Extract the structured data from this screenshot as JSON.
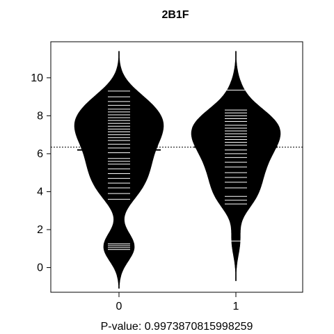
{
  "chart_data": {
    "type": "beanplot",
    "title": "2B1F",
    "xlabel": "P-value: 0.9973870815998259",
    "ylabel": "",
    "categories": [
      "0",
      "1"
    ],
    "x_ticks": [
      "0",
      "1"
    ],
    "y_ticks": [
      0,
      2,
      4,
      6,
      8,
      10
    ],
    "ylim": [
      -1.3,
      11.9
    ],
    "overall_mean": 6.35,
    "beans": [
      {
        "name": "0",
        "mean": 6.2,
        "range": [
          -1.1,
          11.4
        ],
        "observations": [
          0.95,
          1.05,
          1.15,
          1.25,
          3.6,
          3.9,
          4.2,
          4.45,
          4.7,
          4.95,
          5.2,
          5.45,
          5.6,
          5.75,
          6.05,
          6.3,
          6.5,
          6.7,
          6.85,
          7.0,
          7.15,
          7.3,
          7.45,
          7.6,
          7.75,
          7.9,
          8.05,
          8.2,
          8.35,
          8.55,
          8.75,
          9.0,
          9.3
        ]
      },
      {
        "name": "1",
        "mean": 6.35,
        "range": [
          -0.7,
          11.4
        ],
        "observations": [
          1.4,
          3.35,
          3.55,
          3.75,
          4.2,
          4.5,
          4.75,
          5.0,
          5.3,
          5.55,
          5.8,
          6.0,
          6.2,
          6.45,
          6.6,
          6.75,
          6.9,
          7.05,
          7.2,
          7.35,
          7.5,
          7.7,
          7.85,
          8.0,
          8.15,
          8.3,
          9.35
        ]
      }
    ],
    "colors": {
      "bean": "#000000",
      "lines": "#ffffff",
      "axis": "#000000"
    }
  }
}
